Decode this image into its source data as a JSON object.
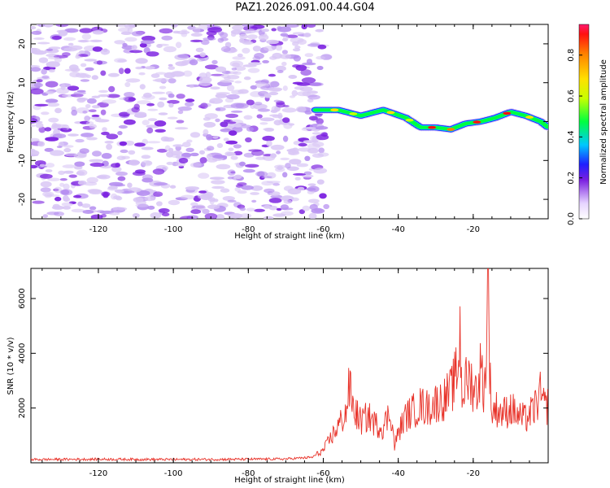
{
  "title": "PAZ1.2026.091.00.44.G04",
  "colors": {
    "snr_line": "#e8332a",
    "blob_light": "#d9c7f5",
    "blob_mid": "#b58ef0",
    "blob_dark": "#7a1fe0"
  },
  "chart_data": [
    {
      "type": "heatmap",
      "title": "",
      "xlabel": "Height of straight line (km)",
      "ylabel": "Frequency (Hz)",
      "xlim": [
        -138,
        0
      ],
      "ylim": [
        -25,
        25
      ],
      "xticks": [
        -120,
        -100,
        -80,
        -60,
        -40,
        -20
      ],
      "yticks": [
        -20,
        -10,
        0,
        10,
        20
      ],
      "xtick_labels": [
        "-120",
        "-100",
        "-80",
        "-60",
        "-40",
        "-20"
      ],
      "ytick_labels": [
        "-20",
        "-10",
        "0",
        "10",
        "20"
      ],
      "noise_region_x": [
        -138,
        -60
      ],
      "signal_track": {
        "x": [
          -62,
          -56,
          -50,
          -44,
          -38,
          -34,
          -30,
          -26,
          -22,
          -18,
          -14,
          -10,
          -6,
          -2,
          0
        ],
        "frequency": [
          3,
          3,
          1.5,
          3,
          1,
          -1.5,
          -1.5,
          -2,
          -0.5,
          0,
          1,
          2.5,
          1.5,
          0,
          -1.5
        ]
      },
      "colorbar": {
        "label": "Normalized spectral amplitude",
        "range": [
          0,
          0.95
        ],
        "ticks": [
          0.0,
          0.2,
          0.4,
          0.6,
          0.8
        ],
        "tick_labels": [
          "0.0",
          "0.2",
          "0.4",
          "0.6",
          "0.8"
        ]
      }
    },
    {
      "type": "line",
      "title": "",
      "xlabel": "Height of straight line (km)",
      "ylabel": "SNR (10 * v/v)",
      "xlim": [
        -138,
        0
      ],
      "ylim": [
        0,
        7100
      ],
      "xticks": [
        -120,
        -100,
        -80,
        -60,
        -40,
        -20
      ],
      "yticks": [
        2000,
        4000,
        6000
      ],
      "xtick_labels": [
        "-120",
        "-100",
        "-80",
        "-60",
        "-40",
        "-20"
      ],
      "ytick_labels": [
        "2000",
        "4000",
        "6000"
      ],
      "series": [
        {
          "name": "SNR",
          "x": [
            -138,
            -120,
            -100,
            -80,
            -70,
            -63,
            -60,
            -58,
            -56,
            -54,
            -53,
            -52,
            -50,
            -48,
            -46,
            -44,
            -42,
            -41,
            -40,
            -38,
            -36,
            -34,
            -32,
            -30,
            -28,
            -26,
            -25,
            -24,
            -23.5,
            -23,
            -22,
            -21,
            -20,
            -19,
            -18,
            -17,
            -16.5,
            -16,
            -15.5,
            -15,
            -14,
            -12,
            -10,
            -8,
            -6,
            -4,
            -2,
            -1,
            0
          ],
          "values": [
            120,
            130,
            120,
            130,
            140,
            200,
            450,
            900,
            1350,
            1800,
            2800,
            2000,
            1500,
            1700,
            1400,
            1300,
            1900,
            600,
            1100,
            1700,
            1900,
            2100,
            2000,
            2200,
            2300,
            2600,
            3000,
            3500,
            4800,
            2500,
            2900,
            3100,
            2800,
            2600,
            3500,
            2600,
            4300,
            7100,
            3000,
            1800,
            2000,
            1800,
            2000,
            1700,
            1600,
            1900,
            2500,
            2000,
            2100
          ]
        }
      ]
    }
  ]
}
